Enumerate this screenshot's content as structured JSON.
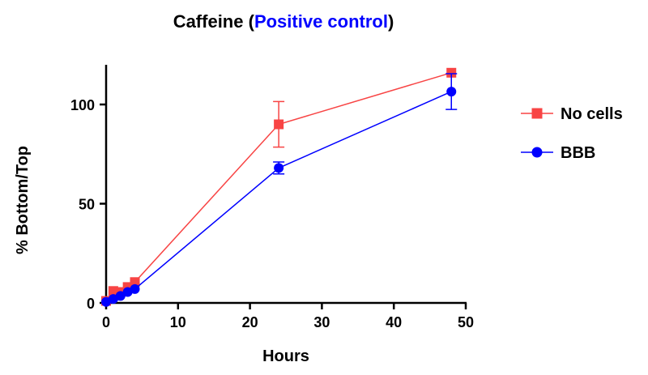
{
  "chart_data": {
    "type": "line",
    "title_parts": [
      {
        "text": "Caffeine (",
        "color": "#000000"
      },
      {
        "text": "Positive control",
        "color": "#0000ff"
      },
      {
        "text": ")",
        "color": "#000000"
      }
    ],
    "xlabel": "Hours",
    "ylabel": "% Bottom/Top",
    "xlim": [
      0,
      50
    ],
    "ylim": [
      0,
      120
    ],
    "xticks": [
      0,
      10,
      20,
      30,
      40,
      50
    ],
    "yticks": [
      0,
      50,
      100
    ],
    "grid": false,
    "legend": "right",
    "series": [
      {
        "name": "No cells",
        "color": "#f84444",
        "marker": "square",
        "x": [
          0,
          1,
          2,
          3,
          4,
          24,
          48
        ],
        "y": [
          1,
          6,
          5.5,
          8,
          10.5,
          90,
          116
        ],
        "err": [
          0.5,
          0.5,
          0.5,
          0.5,
          0.5,
          11.5,
          1
        ]
      },
      {
        "name": "BBB",
        "color": "#0000ff",
        "marker": "circle",
        "x": [
          0,
          1,
          2,
          3,
          4,
          24,
          48
        ],
        "y": [
          0.5,
          2,
          3.5,
          5.5,
          7,
          68,
          106.5
        ],
        "err": [
          0.3,
          0.3,
          0.3,
          0.3,
          0.3,
          3,
          9
        ]
      }
    ]
  }
}
